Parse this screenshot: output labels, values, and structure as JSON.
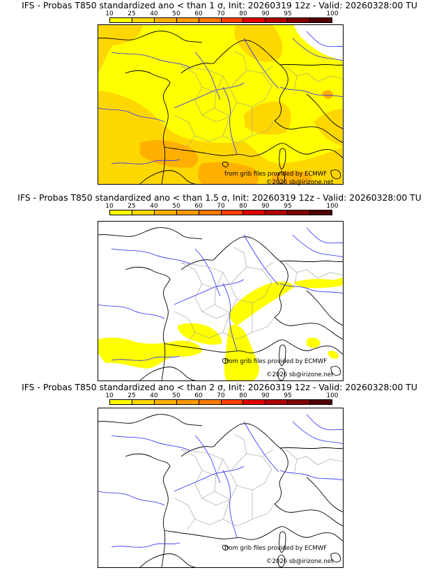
{
  "colors": {
    "scale": [
      "#ffff00",
      "#ffd700",
      "#ffb000",
      "#ff9a00",
      "#ff7a00",
      "#ff4000",
      "#e00000",
      "#b00000",
      "#800000",
      "#500000"
    ],
    "rivers": "#2a2aff",
    "borders": "#000000",
    "regions": "#9a9a9a"
  },
  "colorbar": {
    "ticks": [
      "10",
      "25",
      "40",
      "50",
      "60",
      "70",
      "80",
      "90",
      "95",
      "100"
    ]
  },
  "panels": [
    {
      "title": "IFS - Probas T850  standardized ano < than 1 σ, Init: 20260319 12z - Valid: 20260328:00 TU",
      "credit_source": "from grib files provided by ECMWF",
      "credit_copyright": "©2026 sb@irizone.net"
    },
    {
      "title": "IFS - Probas T850  standardized ano < than 1.5 σ, Init: 20260319 12z - Valid: 20260328:00 TU",
      "credit_source": "from grib files provided by ECMWF",
      "credit_copyright": "©2026 sb@irizone.net"
    },
    {
      "title": "IFS - Probas T850  standardized ano < than 2 σ, Init: 20260319 12z - Valid: 20260328:00 TU",
      "credit_source": "from grib files provided by ECMWF",
      "credit_copyright": "©2026 sb@irizone.net"
    }
  ]
}
